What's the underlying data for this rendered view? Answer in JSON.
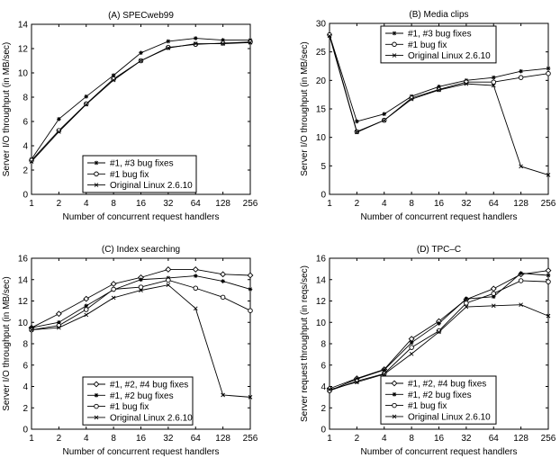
{
  "chart_data": [
    {
      "type": "line",
      "title": "(A) SPECweb99",
      "xlabel": "Number of concurrent request handlers",
      "ylabel": "Server I/O throughput (in MB/sec)",
      "categories": [
        "1",
        "2",
        "4",
        "8",
        "16",
        "32",
        "64",
        "128",
        "256"
      ],
      "ylim": [
        0,
        14
      ],
      "yticks": [
        0,
        2,
        4,
        6,
        8,
        10,
        12,
        14
      ],
      "legend_position": "bottom-center",
      "series": [
        {
          "name": "#1, #3 bug fixes",
          "marker": "star",
          "values": [
            2.9,
            6.2,
            8.05,
            9.8,
            11.65,
            12.6,
            12.85,
            12.7,
            12.7
          ]
        },
        {
          "name": "#1 bug fix",
          "marker": "circle",
          "values": [
            2.8,
            5.25,
            7.45,
            9.5,
            11.0,
            12.1,
            12.35,
            12.45,
            12.55
          ]
        },
        {
          "name": "Original Linux 2.6.10",
          "marker": "x",
          "values": [
            2.7,
            5.15,
            7.4,
            9.4,
            11.0,
            12.05,
            12.4,
            12.4,
            12.5
          ]
        }
      ]
    },
    {
      "type": "line",
      "title": "(B) Media clips",
      "xlabel": "Number of concurrent request handlers",
      "ylabel": "Server I/O throughput (in MB/sec)",
      "categories": [
        "1",
        "2",
        "4",
        "8",
        "16",
        "32",
        "64",
        "128",
        "256"
      ],
      "ylim": [
        0,
        30
      ],
      "yticks": [
        0,
        5,
        10,
        15,
        20,
        25,
        30
      ],
      "legend_position": "top-center",
      "series": [
        {
          "name": "#1, #3 bug fixes",
          "marker": "star",
          "values": [
            28,
            12.8,
            14.1,
            17.2,
            18.9,
            20.0,
            20.5,
            21.6,
            22.1
          ]
        },
        {
          "name": "#1 bug fix",
          "marker": "circle",
          "values": [
            28,
            11,
            13,
            16.9,
            18.4,
            19.7,
            19.7,
            20.5,
            21.2
          ]
        },
        {
          "name": "Original Linux 2.6.10",
          "marker": "x",
          "values": [
            27.8,
            10.9,
            13,
            16.7,
            18.3,
            19.4,
            19.1,
            4.9,
            3.4
          ]
        }
      ]
    },
    {
      "type": "line",
      "title": "(C) Index searching",
      "xlabel": "Number of concurrent request handlers",
      "ylabel": "Server I/O throughput (in MB/sec)",
      "categories": [
        "1",
        "2",
        "4",
        "8",
        "16",
        "32",
        "64",
        "128",
        "256"
      ],
      "ylim": [
        0,
        16
      ],
      "yticks": [
        0,
        2,
        4,
        6,
        8,
        10,
        12,
        14,
        16
      ],
      "legend_position": "bottom-center",
      "series": [
        {
          "name": "#1, #2, #4 bug fixes",
          "marker": "diamond",
          "values": [
            9.5,
            10.8,
            12.2,
            13.6,
            14.2,
            14.95,
            14.95,
            14.5,
            14.4
          ]
        },
        {
          "name": "#1, #2 bug fixes",
          "marker": "star",
          "values": [
            9.5,
            10.0,
            11.55,
            13.05,
            14.0,
            14.15,
            14.35,
            13.85,
            13.1
          ]
        },
        {
          "name": "#1 bug fix",
          "marker": "circle",
          "values": [
            9.3,
            9.7,
            11.2,
            13.1,
            13.3,
            13.95,
            13.2,
            12.35,
            11.1
          ]
        },
        {
          "name": "Original Linux 2.6.10",
          "marker": "x",
          "values": [
            9.3,
            9.5,
            10.7,
            12.3,
            13.0,
            13.5,
            11.3,
            3.2,
            3.0
          ]
        }
      ]
    },
    {
      "type": "line",
      "title": "(D) TPC–C",
      "xlabel": "Number of concurrent request handlers",
      "ylabel": "Server request throughput (in reqs/sec)",
      "categories": [
        "1",
        "2",
        "4",
        "8",
        "16",
        "32",
        "64",
        "128",
        "256"
      ],
      "ylim": [
        0,
        16
      ],
      "yticks": [
        0,
        2,
        4,
        6,
        8,
        10,
        12,
        14,
        16
      ],
      "legend_position": "bottom-center",
      "series": [
        {
          "name": "#1, #2, #4 bug fixes",
          "marker": "diamond",
          "values": [
            3.8,
            4.75,
            5.6,
            8.45,
            10.1,
            12.15,
            13.15,
            14.5,
            14.85
          ]
        },
        {
          "name": "#1, #2 bug fixes",
          "marker": "star",
          "values": [
            3.6,
            4.7,
            5.55,
            8.1,
            9.9,
            12.2,
            12.4,
            14.6,
            14.4
          ]
        },
        {
          "name": "#1 bug fix",
          "marker": "circle",
          "values": [
            3.6,
            4.5,
            5.2,
            7.65,
            9.2,
            11.8,
            12.7,
            13.9,
            13.8
          ]
        },
        {
          "name": "Original Linux 2.6.10",
          "marker": "x",
          "values": [
            3.7,
            4.4,
            5.15,
            7.05,
            9.1,
            11.45,
            11.55,
            11.65,
            10.6
          ]
        }
      ]
    }
  ]
}
